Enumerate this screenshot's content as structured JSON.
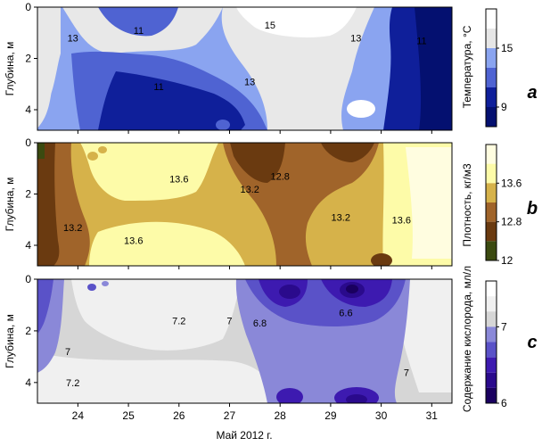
{
  "figure": {
    "xlabel": "Май 2012 г.",
    "x_ticks": [
      "24",
      "25",
      "26",
      "27",
      "28",
      "29",
      "30",
      "31"
    ],
    "x_tick_values": [
      24,
      25,
      26,
      27,
      28,
      29,
      30,
      31
    ],
    "xlim": [
      23.2,
      31.4
    ]
  },
  "chart_data": [
    {
      "type": "heatmap",
      "panel_letter": "a",
      "ylabel": "Глубина, м",
      "y_ticks": [
        "0",
        "2",
        "4"
      ],
      "y_tick_values": [
        0,
        2,
        4
      ],
      "ylim": [
        0,
        4.8
      ],
      "y_inverted": true,
      "colorbar_label": "Температура, °C",
      "colorbar_ticks": [
        "15",
        "9"
      ],
      "colorbar_tick_values": [
        15,
        9
      ],
      "colorbar_levels": [
        17,
        15,
        13,
        11,
        9
      ],
      "colorbar_colors": [
        "#ffffff",
        "#e6e6e6",
        "#8aa4f0",
        "#4f63d2",
        "#0f1f9a",
        "#041070"
      ],
      "contour_labels": [
        {
          "text": "13",
          "x": 23.9,
          "y": 1.2
        },
        {
          "text": "11",
          "x": 25.2,
          "y": 0.9
        },
        {
          "text": "15",
          "x": 27.8,
          "y": 0.7
        },
        {
          "text": "13",
          "x": 29.5,
          "y": 1.2
        },
        {
          "text": "11",
          "x": 30.8,
          "y": 1.3
        },
        {
          "text": "11",
          "x": 25.6,
          "y": 3.1
        },
        {
          "text": "13",
          "x": 27.4,
          "y": 2.9
        }
      ]
    },
    {
      "type": "heatmap",
      "panel_letter": "b",
      "ylabel": "Глубина, м",
      "y_ticks": [
        "0",
        "2",
        "4"
      ],
      "y_tick_values": [
        0,
        2,
        4
      ],
      "ylim": [
        0,
        4.8
      ],
      "y_inverted": true,
      "colorbar_label": "Плотность, кг/м3",
      "colorbar_ticks": [
        "13.6",
        "12.8",
        "12"
      ],
      "colorbar_tick_values": [
        13.6,
        12.8,
        12
      ],
      "colorbar_levels": [
        14,
        13.6,
        13.2,
        12.8,
        12.4,
        12
      ],
      "colorbar_colors": [
        "#fffde0",
        "#fdfba8",
        "#d6b24a",
        "#a0642a",
        "#6a3a10",
        "#3b4a10"
      ],
      "contour_labels": [
        {
          "text": "13.6",
          "x": 26.0,
          "y": 1.4
        },
        {
          "text": "12.8",
          "x": 28.0,
          "y": 1.3
        },
        {
          "text": "13.2",
          "x": 27.4,
          "y": 1.8
        },
        {
          "text": "13.2",
          "x": 23.9,
          "y": 3.3
        },
        {
          "text": "13.6",
          "x": 25.1,
          "y": 3.8
        },
        {
          "text": "13.2",
          "x": 29.2,
          "y": 2.9
        },
        {
          "text": "13.6",
          "x": 30.4,
          "y": 3.0
        }
      ]
    },
    {
      "type": "heatmap",
      "panel_letter": "c",
      "ylabel": "Глубина, м",
      "y_ticks": [
        "0",
        "2",
        "4"
      ],
      "y_tick_values": [
        0,
        2,
        4
      ],
      "ylim": [
        0,
        4.8
      ],
      "y_inverted": true,
      "colorbar_label": "Содержание кислорода, мл/л",
      "colorbar_ticks": [
        "7",
        "6"
      ],
      "colorbar_tick_values": [
        7,
        6
      ],
      "colorbar_levels": [
        7.4,
        7.2,
        7,
        6.8,
        6.6,
        6.4,
        6.2,
        6
      ],
      "colorbar_colors": [
        "#ffffff",
        "#f0f0f0",
        "#d6d6d6",
        "#8a88d8",
        "#5a52c8",
        "#3d1ab0",
        "#2a0a8c",
        "#1a005f"
      ],
      "contour_labels": [
        {
          "text": "7.2",
          "x": 26.0,
          "y": 1.6
        },
        {
          "text": "7",
          "x": 27.0,
          "y": 1.6
        },
        {
          "text": "6.8",
          "x": 27.6,
          "y": 1.7
        },
        {
          "text": "6.6",
          "x": 29.3,
          "y": 1.3
        },
        {
          "text": "7",
          "x": 23.8,
          "y": 2.8
        },
        {
          "text": "7.2",
          "x": 23.9,
          "y": 4.0
        },
        {
          "text": "7",
          "x": 30.5,
          "y": 3.6
        }
      ]
    }
  ]
}
